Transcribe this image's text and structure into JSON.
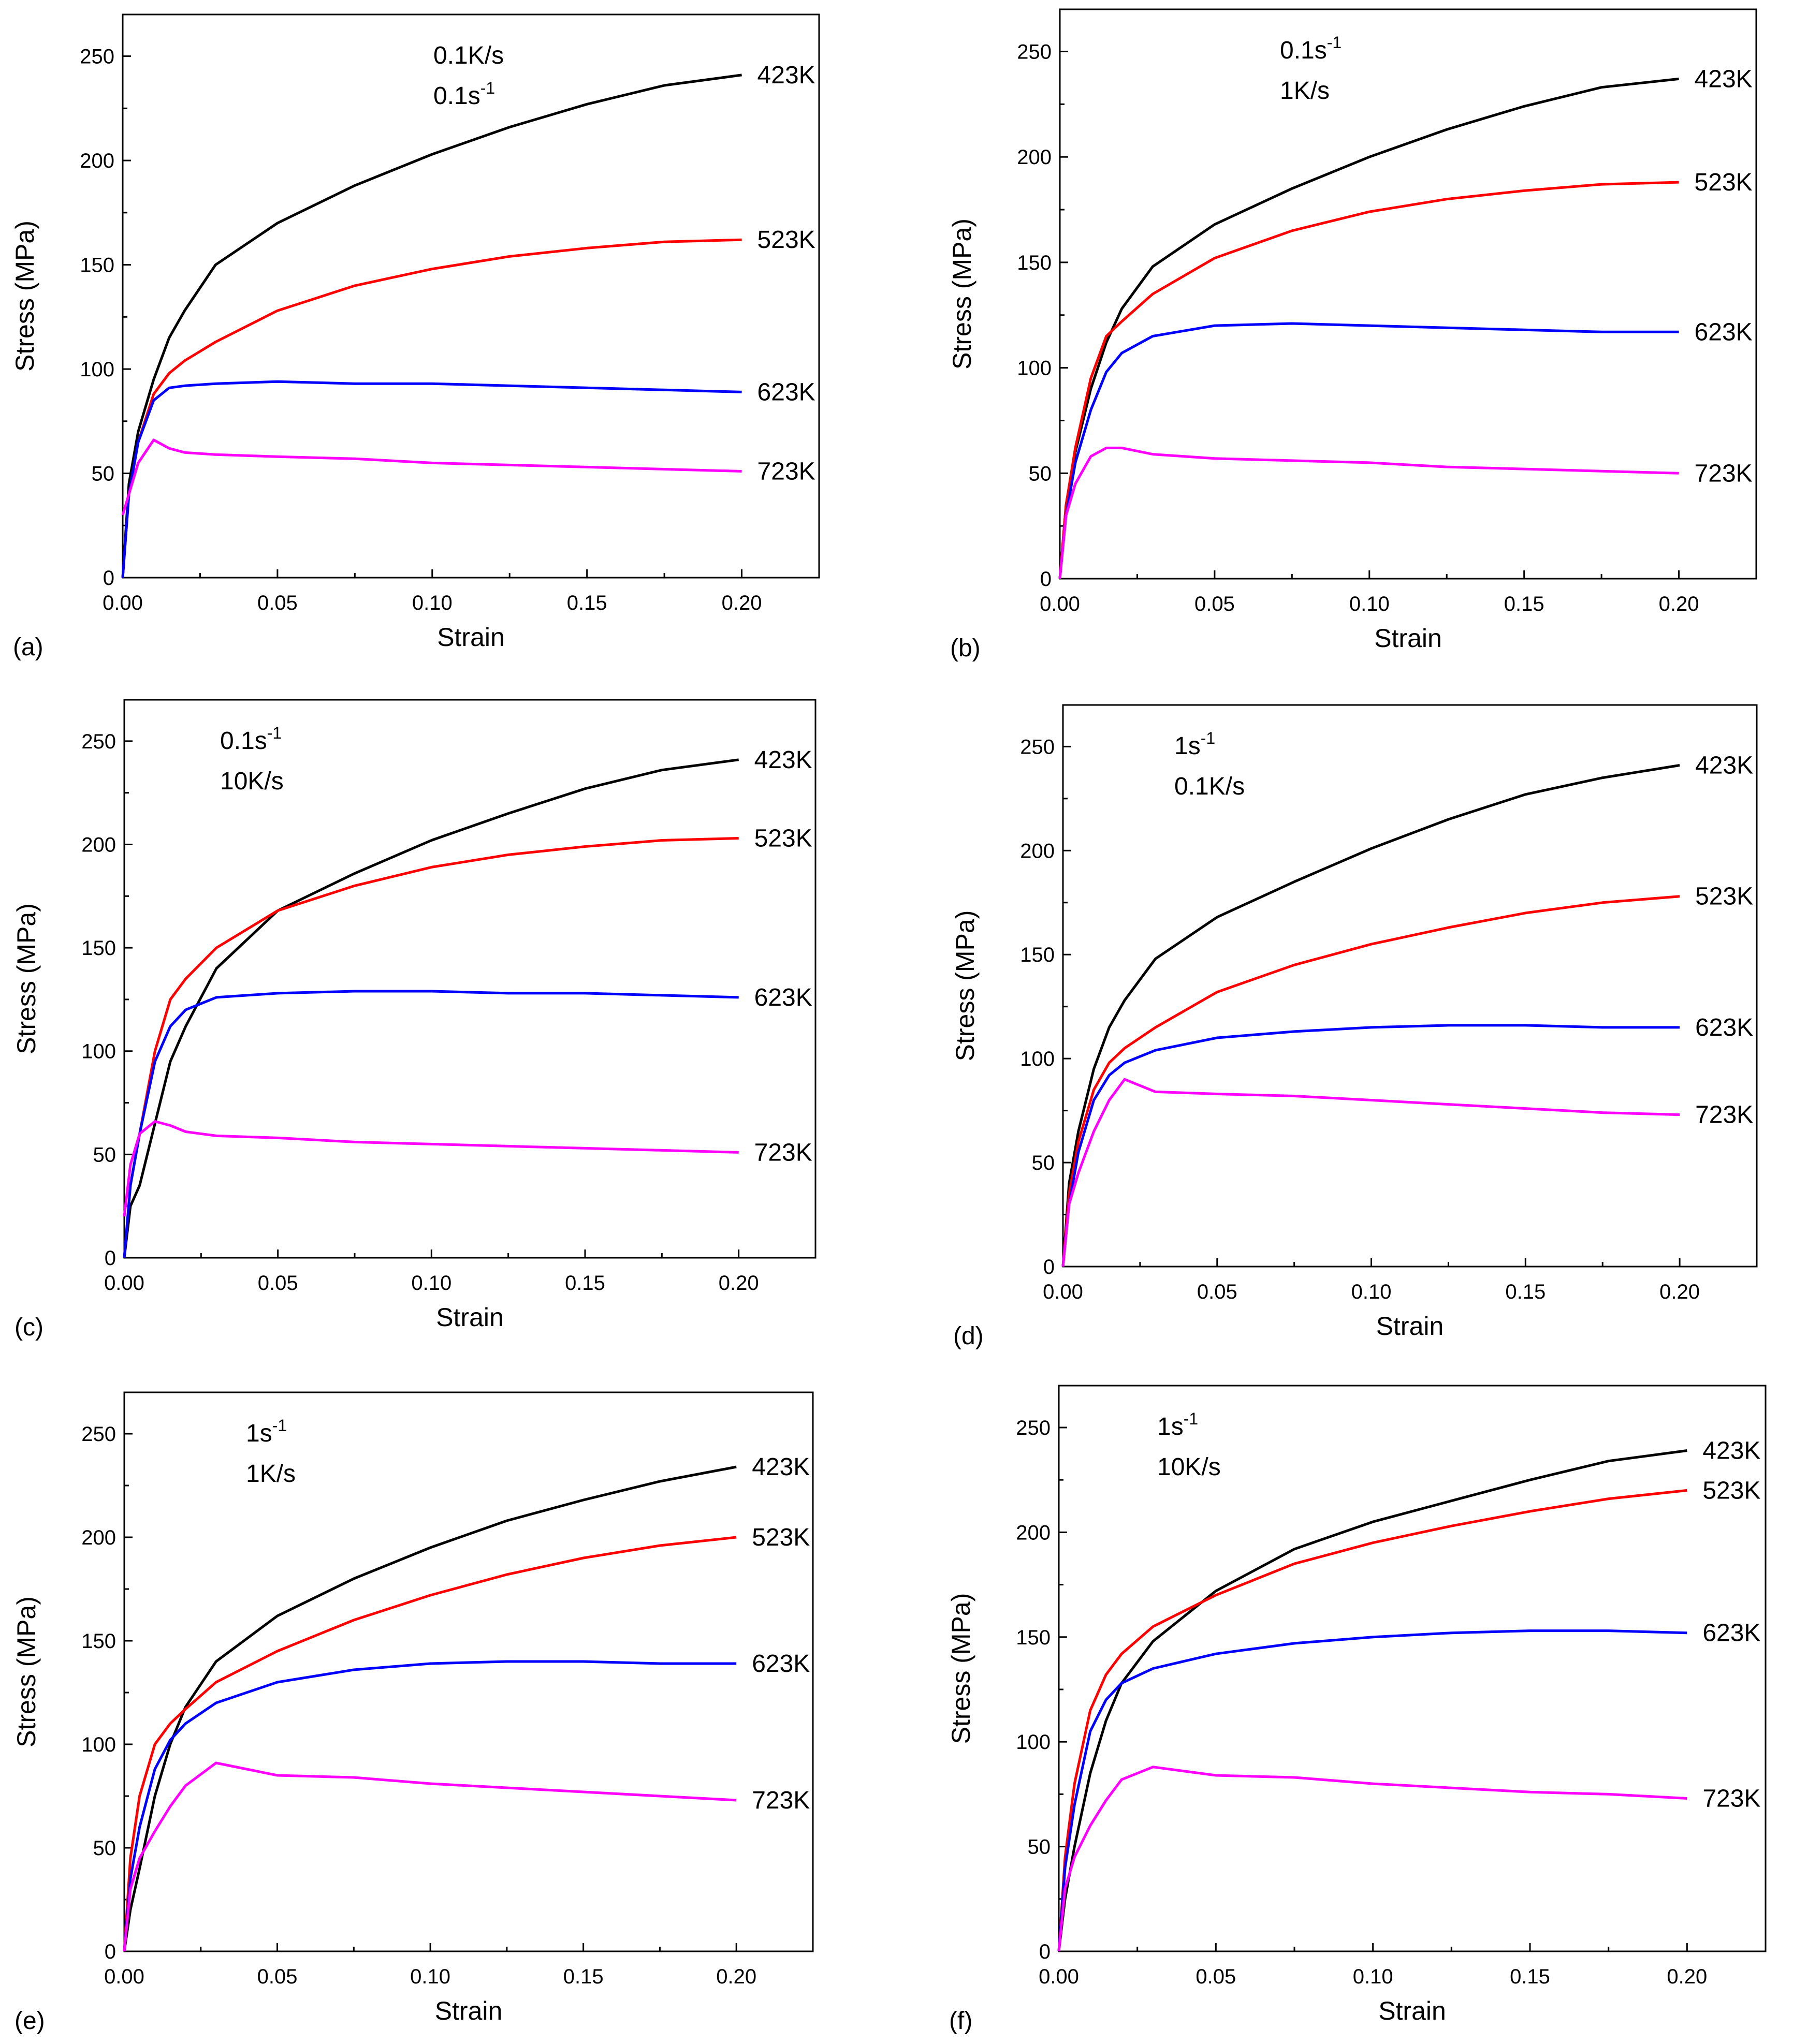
{
  "figure": {
    "panel_count": 6
  },
  "chart_data": [
    {
      "panel_label": "(a)",
      "type": "line",
      "xlabel": "Strain",
      "ylabel": "Stress (MPa)",
      "xlim": [
        0,
        0.225
      ],
      "ylim": [
        0,
        270
      ],
      "xticks": [
        "0.00",
        "0.05",
        "0.10",
        "0.15",
        "0.20"
      ],
      "yticks": [
        "0",
        "50",
        "100",
        "150",
        "200",
        "250"
      ],
      "conditions": [
        {
          "base": "0.1K/s",
          "sup": ""
        },
        {
          "base": "0.1s",
          "sup": "-1"
        }
      ],
      "series": [
        {
          "name": "423K",
          "color": "#000000",
          "x": [
            0,
            0.002,
            0.005,
            0.01,
            0.015,
            0.02,
            0.03,
            0.05,
            0.075,
            0.1,
            0.125,
            0.15,
            0.175,
            0.2
          ],
          "y": [
            0,
            45,
            70,
            95,
            115,
            128,
            150,
            170,
            188,
            203,
            216,
            227,
            236,
            241
          ]
        },
        {
          "name": "523K",
          "color": "#ff0000",
          "x": [
            0,
            0.002,
            0.005,
            0.01,
            0.015,
            0.02,
            0.03,
            0.05,
            0.075,
            0.1,
            0.125,
            0.15,
            0.175,
            0.2
          ],
          "y": [
            0,
            40,
            65,
            88,
            98,
            104,
            113,
            128,
            140,
            148,
            154,
            158,
            161,
            162
          ]
        },
        {
          "name": "623K",
          "color": "#0000ff",
          "x": [
            0,
            0.002,
            0.005,
            0.01,
            0.015,
            0.02,
            0.03,
            0.05,
            0.075,
            0.1,
            0.125,
            0.15,
            0.175,
            0.2
          ],
          "y": [
            0,
            40,
            65,
            85,
            91,
            92,
            93,
            94,
            93,
            93,
            92,
            91,
            90,
            89
          ]
        },
        {
          "name": "723K",
          "color": "#ff00ff",
          "x": [
            0,
            0.002,
            0.005,
            0.01,
            0.015,
            0.02,
            0.03,
            0.05,
            0.075,
            0.1,
            0.125,
            0.15,
            0.175,
            0.2
          ],
          "y": [
            30,
            40,
            55,
            66,
            62,
            60,
            59,
            58,
            57,
            55,
            54,
            53,
            52,
            51
          ]
        }
      ]
    },
    {
      "panel_label": "(b)",
      "type": "line",
      "xlabel": "Strain",
      "ylabel": "Stress (MPa)",
      "xlim": [
        0,
        0.225
      ],
      "ylim": [
        0,
        270
      ],
      "xticks": [
        "0.00",
        "0.05",
        "0.10",
        "0.15",
        "0.20"
      ],
      "yticks": [
        "0",
        "50",
        "100",
        "150",
        "200",
        "250"
      ],
      "conditions": [
        {
          "base": "0.1s",
          "sup": "-1"
        },
        {
          "base": "1K/s",
          "sup": ""
        }
      ],
      "series": [
        {
          "name": "423K",
          "color": "#000000",
          "x": [
            0,
            0.002,
            0.005,
            0.01,
            0.015,
            0.02,
            0.03,
            0.05,
            0.075,
            0.1,
            0.125,
            0.15,
            0.175,
            0.2
          ],
          "y": [
            0,
            35,
            60,
            90,
            112,
            128,
            148,
            168,
            185,
            200,
            213,
            224,
            233,
            237
          ]
        },
        {
          "name": "523K",
          "color": "#ff0000",
          "x": [
            0,
            0.002,
            0.005,
            0.01,
            0.015,
            0.02,
            0.03,
            0.05,
            0.075,
            0.1,
            0.125,
            0.15,
            0.175,
            0.2
          ],
          "y": [
            0,
            35,
            62,
            95,
            115,
            122,
            135,
            152,
            165,
            174,
            180,
            184,
            187,
            188
          ]
        },
        {
          "name": "623K",
          "color": "#0000ff",
          "x": [
            0,
            0.002,
            0.005,
            0.01,
            0.015,
            0.02,
            0.03,
            0.05,
            0.075,
            0.1,
            0.125,
            0.15,
            0.175,
            0.2
          ],
          "y": [
            0,
            30,
            55,
            80,
            98,
            107,
            115,
            120,
            121,
            120,
            119,
            118,
            117,
            117
          ]
        },
        {
          "name": "723K",
          "color": "#ff00ff",
          "x": [
            0,
            0.002,
            0.005,
            0.01,
            0.015,
            0.02,
            0.03,
            0.05,
            0.075,
            0.1,
            0.125,
            0.15,
            0.175,
            0.2
          ],
          "y": [
            0,
            30,
            45,
            58,
            62,
            62,
            59,
            57,
            56,
            55,
            53,
            52,
            51,
            50
          ]
        }
      ]
    },
    {
      "panel_label": "(c)",
      "type": "line",
      "xlabel": "Strain",
      "ylabel": "Stress (MPa)",
      "xlim": [
        0,
        0.225
      ],
      "ylim": [
        0,
        270
      ],
      "xticks": [
        "0.00",
        "0.05",
        "0.10",
        "0.15",
        "0.20"
      ],
      "yticks": [
        "0",
        "50",
        "100",
        "150",
        "200",
        "250"
      ],
      "conditions": [
        {
          "base": "0.1s",
          "sup": "-1"
        },
        {
          "base": "10K/s",
          "sup": ""
        }
      ],
      "series": [
        {
          "name": "423K",
          "color": "#000000",
          "x": [
            0,
            0.002,
            0.005,
            0.01,
            0.015,
            0.02,
            0.03,
            0.05,
            0.075,
            0.1,
            0.125,
            0.15,
            0.175,
            0.2
          ],
          "y": [
            0,
            25,
            35,
            65,
            95,
            112,
            140,
            168,
            186,
            202,
            215,
            227,
            236,
            241
          ]
        },
        {
          "name": "523K",
          "color": "#ff0000",
          "x": [
            0,
            0.002,
            0.005,
            0.01,
            0.015,
            0.02,
            0.03,
            0.05,
            0.075,
            0.1,
            0.125,
            0.15,
            0.175,
            0.2
          ],
          "y": [
            0,
            35,
            60,
            100,
            125,
            135,
            150,
            168,
            180,
            189,
            195,
            199,
            202,
            203
          ]
        },
        {
          "name": "623K",
          "color": "#0000ff",
          "x": [
            0,
            0.002,
            0.005,
            0.01,
            0.015,
            0.02,
            0.03,
            0.05,
            0.075,
            0.1,
            0.125,
            0.15,
            0.175,
            0.2
          ],
          "y": [
            0,
            35,
            60,
            95,
            112,
            120,
            126,
            128,
            129,
            129,
            128,
            128,
            127,
            126
          ]
        },
        {
          "name": "723K",
          "color": "#ff00ff",
          "x": [
            0,
            0.002,
            0.005,
            0.01,
            0.015,
            0.02,
            0.03,
            0.05,
            0.075,
            0.1,
            0.125,
            0.15,
            0.175,
            0.2
          ],
          "y": [
            20,
            45,
            60,
            66,
            64,
            61,
            59,
            58,
            56,
            55,
            54,
            53,
            52,
            51
          ]
        }
      ]
    },
    {
      "panel_label": "(d)",
      "type": "line",
      "xlabel": "Strain",
      "ylabel": "Stress (MPa)",
      "xlim": [
        0,
        0.225
      ],
      "ylim": [
        0,
        270
      ],
      "xticks": [
        "0.00",
        "0.05",
        "0.10",
        "0.15",
        "0.20"
      ],
      "yticks": [
        "0",
        "50",
        "100",
        "150",
        "200",
        "250"
      ],
      "conditions": [
        {
          "base": "1s",
          "sup": "-1"
        },
        {
          "base": "0.1K/s",
          "sup": ""
        }
      ],
      "series": [
        {
          "name": "423K",
          "color": "#000000",
          "x": [
            0,
            0.002,
            0.005,
            0.01,
            0.015,
            0.02,
            0.03,
            0.05,
            0.075,
            0.1,
            0.125,
            0.15,
            0.175,
            0.2
          ],
          "y": [
            0,
            40,
            65,
            95,
            115,
            128,
            148,
            168,
            185,
            201,
            215,
            227,
            235,
            241
          ]
        },
        {
          "name": "523K",
          "color": "#ff0000",
          "x": [
            0,
            0.002,
            0.005,
            0.01,
            0.015,
            0.02,
            0.03,
            0.05,
            0.075,
            0.1,
            0.125,
            0.15,
            0.175,
            0.2
          ],
          "y": [
            0,
            35,
            60,
            85,
            98,
            105,
            115,
            132,
            145,
            155,
            163,
            170,
            175,
            178
          ]
        },
        {
          "name": "623K",
          "color": "#0000ff",
          "x": [
            0,
            0.002,
            0.005,
            0.01,
            0.015,
            0.02,
            0.03,
            0.05,
            0.075,
            0.1,
            0.125,
            0.15,
            0.175,
            0.2
          ],
          "y": [
            0,
            30,
            55,
            80,
            92,
            98,
            104,
            110,
            113,
            115,
            116,
            116,
            115,
            115
          ]
        },
        {
          "name": "723K",
          "color": "#ff00ff",
          "x": [
            0,
            0.002,
            0.005,
            0.01,
            0.015,
            0.02,
            0.03,
            0.05,
            0.075,
            0.1,
            0.125,
            0.15,
            0.175,
            0.2
          ],
          "y": [
            0,
            30,
            45,
            65,
            80,
            90,
            84,
            83,
            82,
            80,
            78,
            76,
            74,
            73
          ]
        }
      ]
    },
    {
      "panel_label": "(e)",
      "type": "line",
      "xlabel": "Strain",
      "ylabel": "Stress (MPa)",
      "xlim": [
        0,
        0.225
      ],
      "ylim": [
        0,
        270
      ],
      "xticks": [
        "0.00",
        "0.05",
        "0.10",
        "0.15",
        "0.20"
      ],
      "yticks": [
        "0",
        "50",
        "100",
        "150",
        "200",
        "250"
      ],
      "conditions": [
        {
          "base": "1s",
          "sup": "-1"
        },
        {
          "base": "1K/s",
          "sup": ""
        }
      ],
      "series": [
        {
          "name": "423K",
          "color": "#000000",
          "x": [
            0,
            0.002,
            0.005,
            0.01,
            0.015,
            0.02,
            0.03,
            0.05,
            0.075,
            0.1,
            0.125,
            0.15,
            0.175,
            0.2
          ],
          "y": [
            0,
            20,
            40,
            75,
            100,
            118,
            140,
            162,
            180,
            195,
            208,
            218,
            227,
            234
          ]
        },
        {
          "name": "523K",
          "color": "#ff0000",
          "x": [
            0,
            0.002,
            0.005,
            0.01,
            0.015,
            0.02,
            0.03,
            0.05,
            0.075,
            0.1,
            0.125,
            0.15,
            0.175,
            0.2
          ],
          "y": [
            0,
            45,
            75,
            100,
            110,
            117,
            130,
            145,
            160,
            172,
            182,
            190,
            196,
            200
          ]
        },
        {
          "name": "623K",
          "color": "#0000ff",
          "x": [
            0,
            0.002,
            0.005,
            0.01,
            0.015,
            0.02,
            0.03,
            0.05,
            0.075,
            0.1,
            0.125,
            0.15,
            0.175,
            0.2
          ],
          "y": [
            0,
            35,
            60,
            88,
            102,
            110,
            120,
            130,
            136,
            139,
            140,
            140,
            139,
            139
          ]
        },
        {
          "name": "723K",
          "color": "#ff00ff",
          "x": [
            0,
            0.002,
            0.005,
            0.01,
            0.015,
            0.02,
            0.03,
            0.05,
            0.075,
            0.1,
            0.125,
            0.15,
            0.175,
            0.2
          ],
          "y": [
            0,
            30,
            45,
            58,
            70,
            80,
            91,
            85,
            84,
            81,
            79,
            77,
            75,
            73
          ]
        }
      ]
    },
    {
      "panel_label": "(f)",
      "type": "line",
      "xlabel": "Strain",
      "ylabel": "Stress (MPa)",
      "xlim": [
        0,
        0.225
      ],
      "ylim": [
        0,
        270
      ],
      "xticks": [
        "0.00",
        "0.05",
        "0.10",
        "0.15",
        "0.20"
      ],
      "yticks": [
        "0",
        "50",
        "100",
        "150",
        "200",
        "250"
      ],
      "conditions": [
        {
          "base": "1s",
          "sup": "-1"
        },
        {
          "base": "10K/s",
          "sup": ""
        }
      ],
      "series": [
        {
          "name": "423K",
          "color": "#000000",
          "x": [
            0,
            0.002,
            0.005,
            0.01,
            0.015,
            0.02,
            0.03,
            0.05,
            0.075,
            0.1,
            0.125,
            0.15,
            0.175,
            0.2
          ],
          "y": [
            0,
            25,
            50,
            85,
            110,
            128,
            148,
            172,
            192,
            205,
            215,
            225,
            234,
            239
          ]
        },
        {
          "name": "523K",
          "color": "#ff0000",
          "x": [
            0,
            0.002,
            0.005,
            0.01,
            0.015,
            0.02,
            0.03,
            0.05,
            0.075,
            0.1,
            0.125,
            0.15,
            0.175,
            0.2
          ],
          "y": [
            0,
            45,
            80,
            115,
            132,
            142,
            155,
            170,
            185,
            195,
            203,
            210,
            216,
            220
          ]
        },
        {
          "name": "623K",
          "color": "#0000ff",
          "x": [
            0,
            0.002,
            0.005,
            0.01,
            0.015,
            0.02,
            0.03,
            0.05,
            0.075,
            0.1,
            0.125,
            0.15,
            0.175,
            0.2
          ],
          "y": [
            0,
            40,
            70,
            105,
            120,
            128,
            135,
            142,
            147,
            150,
            152,
            153,
            153,
            152
          ]
        },
        {
          "name": "723K",
          "color": "#ff00ff",
          "x": [
            0,
            0.002,
            0.005,
            0.01,
            0.015,
            0.02,
            0.03,
            0.05,
            0.075,
            0.1,
            0.125,
            0.15,
            0.175,
            0.2
          ],
          "y": [
            0,
            30,
            45,
            60,
            72,
            82,
            88,
            84,
            83,
            80,
            78,
            76,
            75,
            73
          ]
        }
      ]
    }
  ]
}
